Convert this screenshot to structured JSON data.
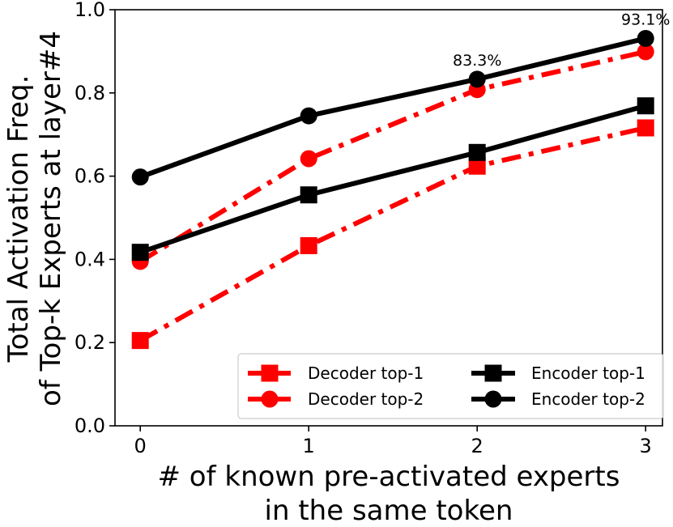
{
  "chart_data": {
    "type": "line",
    "title": "",
    "xlabel_lines": [
      "# of known pre-activated experts",
      "in the same token"
    ],
    "ylabel_lines": [
      "Total Activation Freq.",
      "of Top-k Experts at layer#4"
    ],
    "x": [
      0,
      1,
      2,
      3
    ],
    "xlim": [
      -0.15,
      3.1
    ],
    "ylim": [
      0.0,
      1.0
    ],
    "xticks": [
      "0",
      "1",
      "2",
      "3"
    ],
    "yticks": [
      "0.0",
      "0.2",
      "0.4",
      "0.6",
      "0.8",
      "1.0"
    ],
    "series": [
      {
        "name": "Decoder top-1",
        "color": "#ff0000",
        "marker": "square",
        "linestyle": "dashdot",
        "values": [
          0.205,
          0.433,
          0.624,
          0.716
        ]
      },
      {
        "name": "Decoder top-2",
        "color": "#ff0000",
        "marker": "circle",
        "linestyle": "dashdot",
        "values": [
          0.395,
          0.642,
          0.808,
          0.899
        ]
      },
      {
        "name": "Encoder top-1",
        "color": "#000000",
        "marker": "square",
        "linestyle": "solid",
        "values": [
          0.417,
          0.555,
          0.657,
          0.769
        ]
      },
      {
        "name": "Encoder top-2",
        "color": "#000000",
        "marker": "circle",
        "linestyle": "solid",
        "values": [
          0.598,
          0.745,
          0.833,
          0.931
        ]
      }
    ],
    "annotations": [
      {
        "text": "83.3%",
        "x": 2,
        "y": 0.833
      },
      {
        "text": "93.1%",
        "x": 3,
        "y": 0.931
      }
    ],
    "legend": {
      "position": "lower-right",
      "columns": 2
    },
    "grid": false
  }
}
